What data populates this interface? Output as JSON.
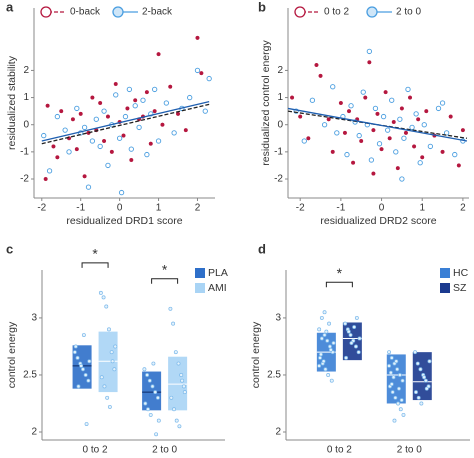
{
  "chart_data": [
    {
      "type": "scatter",
      "panel": "a",
      "x_label": "residualized DRD1 score",
      "y_label": "residualized stability",
      "xlim": [
        -2.2,
        2.45
      ],
      "ylim": [
        -2.7,
        4.3
      ],
      "xticks": [
        -2,
        -1,
        0,
        1,
        2
      ],
      "yticks": [
        -2,
        -1,
        0,
        1,
        2
      ],
      "legend": "top",
      "series": [
        {
          "name": "0-back",
          "color": "#b5173f",
          "linestyle": "dashed",
          "marker": "filled",
          "x": [
            -1.9,
            -1.85,
            -1.7,
            -1.6,
            -1.5,
            -1.3,
            -1.2,
            -1.1,
            -1.0,
            -0.9,
            -0.8,
            -0.7,
            -0.6,
            -0.5,
            -0.4,
            -0.3,
            -0.2,
            -0.1,
            0,
            0.1,
            0.2,
            0.3,
            0.4,
            0.5,
            0.6,
            0.7,
            0.8,
            0.9,
            1.0,
            1.1,
            1.3,
            1.5,
            1.7,
            2.0,
            2.1
          ],
          "values": [
            -2.0,
            0.7,
            -0.8,
            -1.2,
            0.5,
            -0.5,
            0.2,
            -0.9,
            0.4,
            -1.9,
            -0.3,
            1.0,
            -0.2,
            0.8,
            -0.6,
            0.3,
            -1.0,
            1.5,
            0.1,
            -0.4,
            0.6,
            -1.3,
            0.9,
            0.2,
            0.3,
            1.2,
            -0.7,
            0.5,
            2.6,
            0.0,
            1.4,
            0.4,
            -0.2,
            3.2,
            1.9
          ],
          "fit": {
            "x": [
              -2,
              2.3
            ],
            "y": [
              -0.7,
              0.75
            ]
          }
        },
        {
          "name": "2-back",
          "color": "#4a9ee0",
          "linestyle": "solid",
          "marker": "hollow",
          "x": [
            -1.95,
            -1.8,
            -1.6,
            -1.4,
            -1.3,
            -1.1,
            -1.0,
            -0.9,
            -0.8,
            -0.6,
            -0.5,
            -0.4,
            -0.3,
            -0.2,
            -0.1,
            0,
            0.05,
            0.15,
            0.3,
            0.4,
            0.5,
            0.6,
            0.7,
            0.8,
            0.9,
            1.0,
            1.2,
            1.4,
            1.6,
            1.8,
            2.0,
            2.2,
            2.3,
            -0.7,
            0.25
          ],
          "values": [
            -0.4,
            -1.7,
            0.3,
            -0.2,
            -1.0,
            0.6,
            -0.3,
            -0.1,
            -2.3,
            0.2,
            -0.8,
            0.5,
            -1.5,
            0.0,
            1.1,
            -0.5,
            -2.5,
            0.3,
            -0.9,
            0.7,
            -0.1,
            0.9,
            -1.1,
            0.4,
            1.3,
            -0.6,
            0.8,
            -0.3,
            0.6,
            1.0,
            2.0,
            0.5,
            1.7,
            -0.6,
            1.3
          ],
          "fit": {
            "x": [
              -2,
              2.3
            ],
            "y": [
              -0.6,
              0.85
            ]
          }
        }
      ]
    },
    {
      "type": "scatter",
      "panel": "b",
      "x_label": "residualized DRD2 score",
      "y_label": "residualized control energy",
      "xlim": [
        -2.3,
        2.15
      ],
      "ylim": [
        -2.7,
        4.3
      ],
      "xticks": [
        -2,
        -1,
        0,
        1,
        2
      ],
      "yticks": [
        -2,
        -1,
        0,
        1,
        2
      ],
      "legend": "top",
      "series": [
        {
          "name": "0 to 2",
          "color": "#b5173f",
          "linestyle": "dashed",
          "marker": "filled",
          "x": [
            -2.2,
            -2.0,
            -1.8,
            -1.5,
            -1.3,
            -1.2,
            -1.0,
            -0.9,
            -0.8,
            -0.7,
            -0.6,
            -0.5,
            -0.4,
            -0.3,
            -0.2,
            -0.1,
            0,
            0.1,
            0.2,
            0.3,
            0.4,
            0.5,
            0.6,
            0.7,
            0.8,
            0.9,
            1.0,
            1.1,
            1.3,
            1.5,
            1.7,
            1.9,
            2.0,
            -1.6,
            -0.2
          ],
          "values": [
            1.0,
            0.3,
            -0.5,
            1.8,
            0.2,
            -1.0,
            0.8,
            -0.3,
            0.5,
            -1.4,
            0.2,
            -0.6,
            1.0,
            2.3,
            -0.2,
            0.4,
            -0.9,
            1.2,
            -0.5,
            0.1,
            -1.6,
            0.6,
            -0.3,
            1.0,
            -0.8,
            0.2,
            -1.2,
            0.5,
            -0.4,
            -1.0,
            0.3,
            -1.5,
            -0.2,
            2.2,
            -1.8
          ],
          "fit": {
            "x": [
              -2.3,
              2.1
            ],
            "y": [
              0.5,
              -0.5
            ]
          }
        },
        {
          "name": "2 to 0",
          "color": "#4a9ee0",
          "linestyle": "solid",
          "marker": "hollow",
          "x": [
            -2.1,
            -1.9,
            -1.7,
            -1.4,
            -1.2,
            -1.1,
            -0.95,
            -0.85,
            -0.75,
            -0.65,
            -0.55,
            -0.45,
            -0.35,
            -0.25,
            -0.15,
            -0.05,
            0.05,
            0.15,
            0.25,
            0.35,
            0.45,
            0.55,
            0.65,
            0.75,
            0.85,
            0.95,
            1.05,
            1.2,
            1.4,
            1.6,
            1.8,
            2.0,
            -0.3,
            0.5,
            1.5
          ],
          "values": [
            0.5,
            -0.6,
            0.9,
            0.0,
            1.4,
            -0.3,
            0.3,
            -1.1,
            0.7,
            0.1,
            -0.4,
            1.2,
            0.0,
            -1.3,
            0.6,
            -0.7,
            0.3,
            -0.2,
            0.9,
            -1.0,
            0.2,
            -0.5,
            1.3,
            -0.1,
            0.4,
            -1.4,
            0.0,
            -0.8,
            0.6,
            -0.3,
            -1.1,
            -0.6,
            2.7,
            -2.0,
            0.8
          ],
          "fit": {
            "x": [
              -2.3,
              2.1
            ],
            "y": [
              0.6,
              -0.6
            ]
          }
        }
      ]
    },
    {
      "type": "box",
      "panel": "c",
      "y_label": "control energy",
      "categories": [
        "0 to 2",
        "2 to 0"
      ],
      "ylim": [
        1.93,
        3.42
      ],
      "yticks": [
        2,
        2.5,
        3
      ],
      "legend": "upper right",
      "significance": [
        {
          "category": "0 to 2",
          "label": "*"
        },
        {
          "category": "2 to 0",
          "label": "*"
        }
      ],
      "series": [
        {
          "name": "PLA",
          "color": "#2e6fc9",
          "mean": [
            2.58,
            2.35
          ],
          "lower": [
            2.38,
            2.19
          ],
          "upper": [
            2.76,
            2.53
          ],
          "points": [
            [
              2.7,
              2.65,
              2.6,
              2.55,
              2.5,
              2.45,
              2.75,
              2.4,
              2.58,
              2.85,
              2.07,
              2.62
            ],
            [
              2.55,
              2.5,
              2.45,
              2.4,
              2.35,
              2.3,
              2.25,
              2.2,
              2.15,
              2.6,
              1.98,
              2.1
            ]
          ]
        },
        {
          "name": "AMI",
          "color": "#a9d4f5",
          "mean": [
            2.62,
            2.42
          ],
          "lower": [
            2.35,
            2.19
          ],
          "upper": [
            2.88,
            2.66
          ],
          "points": [
            [
              3.22,
              3.18,
              3.1,
              2.9,
              2.7,
              2.55,
              2.48,
              2.4,
              2.3,
              2.22,
              2.62,
              2.75
            ],
            [
              3.08,
              2.95,
              2.7,
              2.6,
              2.5,
              2.4,
              2.3,
              2.2,
              2.1,
              2.05,
              2.45,
              2.35
            ]
          ]
        }
      ]
    },
    {
      "type": "box",
      "panel": "d",
      "y_label": "control energy",
      "categories": [
        "0 to 2",
        "2 to 0"
      ],
      "ylim": [
        1.93,
        3.42
      ],
      "yticks": [
        2,
        2.5,
        3
      ],
      "legend": "upper right",
      "significance": [
        {
          "category": "0 to 2",
          "label": "*"
        }
      ],
      "series": [
        {
          "name": "HC",
          "color": "#3a7fd5",
          "mean": [
            2.7,
            2.5
          ],
          "lower": [
            2.53,
            2.25
          ],
          "upper": [
            2.87,
            2.68
          ],
          "points": [
            [
              2.9,
              3.0,
              2.85,
              2.8,
              2.75,
              2.7,
              2.65,
              2.6,
              2.55,
              2.5,
              2.72,
              2.78,
              2.68,
              2.62,
              2.88,
              2.95,
              2.45,
              2.58,
              2.82,
              3.05
            ],
            [
              2.7,
              2.65,
              2.6,
              2.55,
              2.5,
              2.45,
              2.4,
              2.35,
              2.3,
              2.25,
              2.2,
              2.15,
              2.52,
              2.48,
              2.62,
              2.38,
              2.28,
              2.58,
              2.42,
              2.1
            ]
          ]
        },
        {
          "name": "SZ",
          "color": "#1b3a8f",
          "mean": [
            2.82,
            2.44
          ],
          "lower": [
            2.63,
            2.28
          ],
          "upper": [
            2.96,
            2.7
          ],
          "points": [
            [
              2.95,
              2.9,
              2.85,
              2.8,
              2.75,
              2.7,
              2.65,
              2.88,
              2.78,
              2.92,
              3.0,
              2.82
            ],
            [
              2.7,
              2.6,
              2.55,
              2.5,
              2.45,
              2.4,
              2.35,
              2.3,
              2.25,
              2.48,
              2.38,
              2.62
            ]
          ]
        }
      ]
    }
  ]
}
